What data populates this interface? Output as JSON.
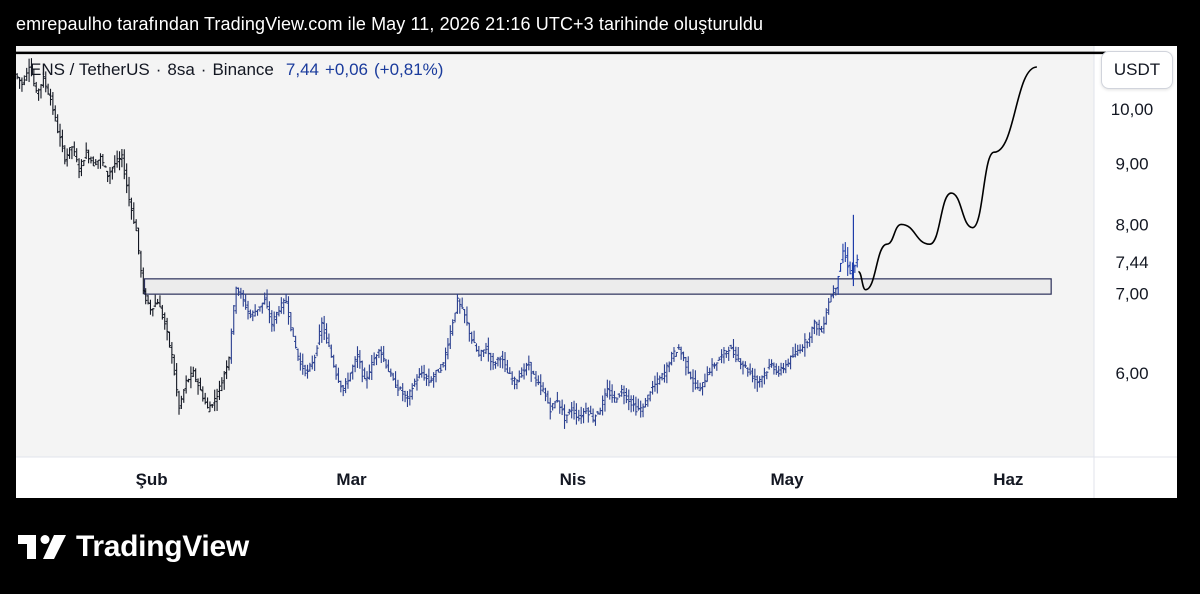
{
  "header": {
    "title": "emrepaulho tarafından TradingView.com ile May 11, 2026 21:16 UTC+3 tarihinde oluşturuldu"
  },
  "symbol": {
    "name": "ENS / TetherUS",
    "interval": "8sa",
    "exchange": "Binance",
    "price": "7,44",
    "change": "+0,06",
    "change_pct": "(+0,81%)",
    "separator": "·"
  },
  "currency_badge": "USDT",
  "brand": {
    "name": "TradingView"
  },
  "colors": {
    "plot_bg": "#f4f4f4",
    "axis_bg": "#ffffff",
    "candles_early": "#131722",
    "candles_mid": "#2a3f8f",
    "candles_late": "#1e3ca8",
    "zone_fill": "#ececec",
    "zone_border": "#2b2f5a",
    "projection": "#000000"
  },
  "chart_data": {
    "type": "candlestick",
    "title": "ENS / TetherUS · 8sa · Binance",
    "y_axis": {
      "scale": "log",
      "ticks": [
        {
          "value": 10,
          "label": "10,00"
        },
        {
          "value": 9,
          "label": "9,00"
        },
        {
          "value": 8,
          "label": "8,00"
        },
        {
          "value": 7,
          "label": "7,00"
        },
        {
          "value": 6,
          "label": "6,00"
        }
      ],
      "last_price_label": "7,44",
      "last_price": 7.44,
      "range": [
        5.1,
        11.3
      ]
    },
    "x_axis": {
      "labels": [
        "Şub",
        "Mar",
        "Nis",
        "May",
        "Haz"
      ],
      "label_dates": [
        "2026-02-01",
        "2026-03-01",
        "2026-04-01",
        "2026-05-01",
        "2026-06-01"
      ],
      "range": [
        "2026-01-13",
        "2026-06-13"
      ]
    },
    "price_path": [
      [
        "2026-01-13",
        10.7
      ],
      [
        "2026-01-14",
        10.5
      ],
      [
        "2026-01-15",
        10.9
      ],
      [
        "2026-01-16",
        10.3
      ],
      [
        "2026-01-17",
        10.6
      ],
      [
        "2026-01-18",
        10.2
      ],
      [
        "2026-01-19",
        9.6
      ],
      [
        "2026-01-20",
        9.1
      ],
      [
        "2026-01-21",
        9.3
      ],
      [
        "2026-01-22",
        8.9
      ],
      [
        "2026-01-23",
        9.2
      ],
      [
        "2026-01-24",
        9.0
      ],
      [
        "2026-01-25",
        9.1
      ],
      [
        "2026-01-26",
        8.8
      ],
      [
        "2026-01-27",
        9.0
      ],
      [
        "2026-01-28",
        9.1
      ],
      [
        "2026-01-29",
        8.4
      ],
      [
        "2026-01-30",
        7.9
      ],
      [
        "2026-01-31",
        7.0
      ],
      [
        "2026-02-01",
        6.8
      ],
      [
        "2026-02-02",
        6.9
      ],
      [
        "2026-02-03",
        6.6
      ],
      [
        "2026-02-04",
        6.2
      ],
      [
        "2026-02-05",
        5.6
      ],
      [
        "2026-02-06",
        5.9
      ],
      [
        "2026-02-07",
        6.0
      ],
      [
        "2026-02-08",
        5.8
      ],
      [
        "2026-02-09",
        5.6
      ],
      [
        "2026-02-10",
        5.7
      ],
      [
        "2026-02-11",
        5.9
      ],
      [
        "2026-02-12",
        6.2
      ],
      [
        "2026-02-13",
        7.1
      ],
      [
        "2026-02-14",
        6.9
      ],
      [
        "2026-02-15",
        6.7
      ],
      [
        "2026-02-16",
        6.8
      ],
      [
        "2026-02-17",
        6.9
      ],
      [
        "2026-02-18",
        6.6
      ],
      [
        "2026-02-19",
        6.8
      ],
      [
        "2026-02-20",
        6.9
      ],
      [
        "2026-02-21",
        6.4
      ],
      [
        "2026-02-22",
        6.1
      ],
      [
        "2026-02-23",
        6.0
      ],
      [
        "2026-02-24",
        6.2
      ],
      [
        "2026-02-25",
        6.6
      ],
      [
        "2026-02-26",
        6.3
      ],
      [
        "2026-02-27",
        6.0
      ],
      [
        "2026-02-28",
        5.8
      ],
      [
        "2026-03-01",
        6.0
      ],
      [
        "2026-03-02",
        6.2
      ],
      [
        "2026-03-03",
        5.9
      ],
      [
        "2026-03-04",
        6.1
      ],
      [
        "2026-03-05",
        6.3
      ],
      [
        "2026-03-06",
        6.1
      ],
      [
        "2026-03-07",
        5.9
      ],
      [
        "2026-03-08",
        5.8
      ],
      [
        "2026-03-09",
        5.7
      ],
      [
        "2026-03-10",
        5.9
      ],
      [
        "2026-03-11",
        6.0
      ],
      [
        "2026-03-12",
        5.9
      ],
      [
        "2026-03-13",
        6.0
      ],
      [
        "2026-03-14",
        6.1
      ],
      [
        "2026-03-15",
        6.5
      ],
      [
        "2026-03-16",
        6.9
      ],
      [
        "2026-03-17",
        6.7
      ],
      [
        "2026-03-18",
        6.4
      ],
      [
        "2026-03-19",
        6.2
      ],
      [
        "2026-03-20",
        6.3
      ],
      [
        "2026-03-21",
        6.1
      ],
      [
        "2026-03-22",
        6.2
      ],
      [
        "2026-03-23",
        6.0
      ],
      [
        "2026-03-24",
        5.9
      ],
      [
        "2026-03-25",
        6.0
      ],
      [
        "2026-03-26",
        6.1
      ],
      [
        "2026-03-27",
        5.9
      ],
      [
        "2026-03-28",
        5.8
      ],
      [
        "2026-03-29",
        5.6
      ],
      [
        "2026-03-30",
        5.7
      ],
      [
        "2026-03-31",
        5.5
      ],
      [
        "2026-04-01",
        5.6
      ],
      [
        "2026-04-02",
        5.5
      ],
      [
        "2026-04-03",
        5.6
      ],
      [
        "2026-04-04",
        5.5
      ],
      [
        "2026-04-05",
        5.6
      ],
      [
        "2026-04-06",
        5.8
      ],
      [
        "2026-04-07",
        5.7
      ],
      [
        "2026-04-08",
        5.8
      ],
      [
        "2026-04-09",
        5.7
      ],
      [
        "2026-04-10",
        5.6
      ],
      [
        "2026-04-11",
        5.6
      ],
      [
        "2026-04-12",
        5.8
      ],
      [
        "2026-04-13",
        5.9
      ],
      [
        "2026-04-14",
        6.0
      ],
      [
        "2026-04-15",
        6.2
      ],
      [
        "2026-04-16",
        6.3
      ],
      [
        "2026-04-17",
        6.1
      ],
      [
        "2026-04-18",
        5.9
      ],
      [
        "2026-04-19",
        5.8
      ],
      [
        "2026-04-20",
        6.0
      ],
      [
        "2026-04-21",
        6.1
      ],
      [
        "2026-04-22",
        6.2
      ],
      [
        "2026-04-23",
        6.3
      ],
      [
        "2026-04-24",
        6.2
      ],
      [
        "2026-04-25",
        6.1
      ],
      [
        "2026-04-26",
        6.0
      ],
      [
        "2026-04-27",
        5.9
      ],
      [
        "2026-04-28",
        6.0
      ],
      [
        "2026-04-29",
        6.1
      ],
      [
        "2026-04-30",
        6.0
      ],
      [
        "2026-05-01",
        6.1
      ],
      [
        "2026-05-02",
        6.2
      ],
      [
        "2026-05-03",
        6.3
      ],
      [
        "2026-05-04",
        6.4
      ],
      [
        "2026-05-05",
        6.6
      ],
      [
        "2026-05-06",
        6.5
      ],
      [
        "2026-05-07",
        6.9
      ],
      [
        "2026-05-08",
        7.1
      ],
      [
        "2026-05-09",
        7.6
      ],
      [
        "2026-05-10",
        7.3
      ],
      [
        "2026-05-11",
        7.44
      ]
    ],
    "resistance_zone": {
      "start": "2026-01-31",
      "end": "2026-06-07",
      "low": 6.99,
      "high": 7.2
    },
    "projection_path": [
      [
        "2026-05-11",
        7.3
      ],
      [
        "2026-05-12",
        7.05
      ],
      [
        "2026-05-15",
        7.7
      ],
      [
        "2026-05-17",
        8.0
      ],
      [
        "2026-05-21",
        7.7
      ],
      [
        "2026-05-24",
        8.5
      ],
      [
        "2026-05-27",
        7.95
      ],
      [
        "2026-05-30",
        9.2
      ],
      [
        "2026-06-05",
        10.85
      ]
    ],
    "horizontal_line": {
      "value": 11.15
    }
  }
}
